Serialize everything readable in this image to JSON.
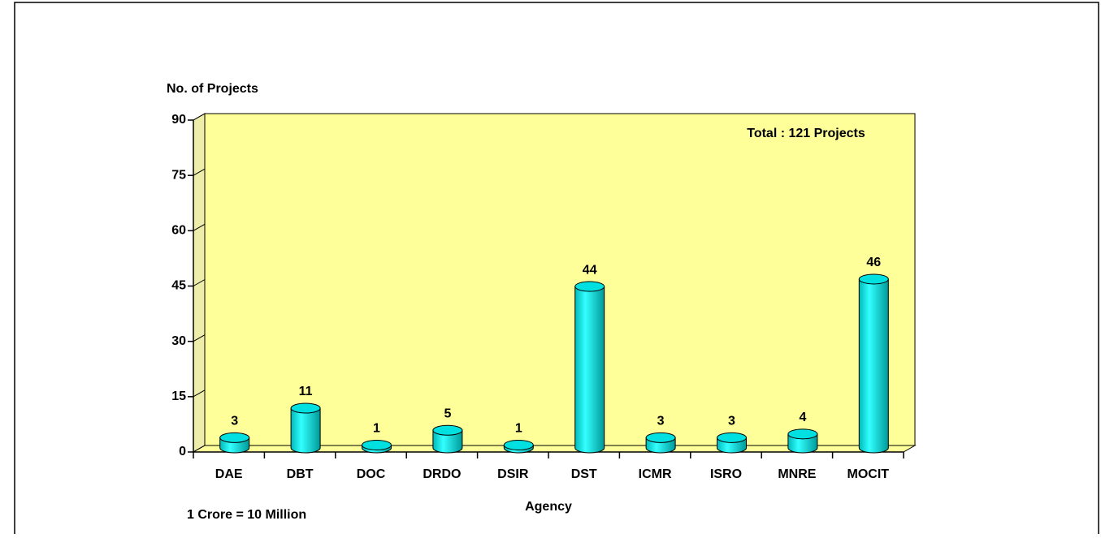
{
  "chart_data": {
    "type": "bar",
    "y_label": "No. of Projects",
    "x_label": "Agency",
    "annotation": "Total : 121 Projects",
    "note": "1 Crore = 10 Million",
    "categories": [
      "DAE",
      "DBT",
      "DOC",
      "DRDO",
      "DSIR",
      "DST",
      "ICMR",
      "ISRO",
      "MNRE",
      "MOCIT"
    ],
    "values": [
      3,
      11,
      1,
      5,
      1,
      44,
      3,
      3,
      4,
      46
    ],
    "color": "#00e0e0",
    "wall_color": "#ffff99",
    "ylim": [
      0,
      90
    ],
    "yticks": [
      0,
      15,
      30,
      45,
      60,
      75,
      90
    ]
  }
}
